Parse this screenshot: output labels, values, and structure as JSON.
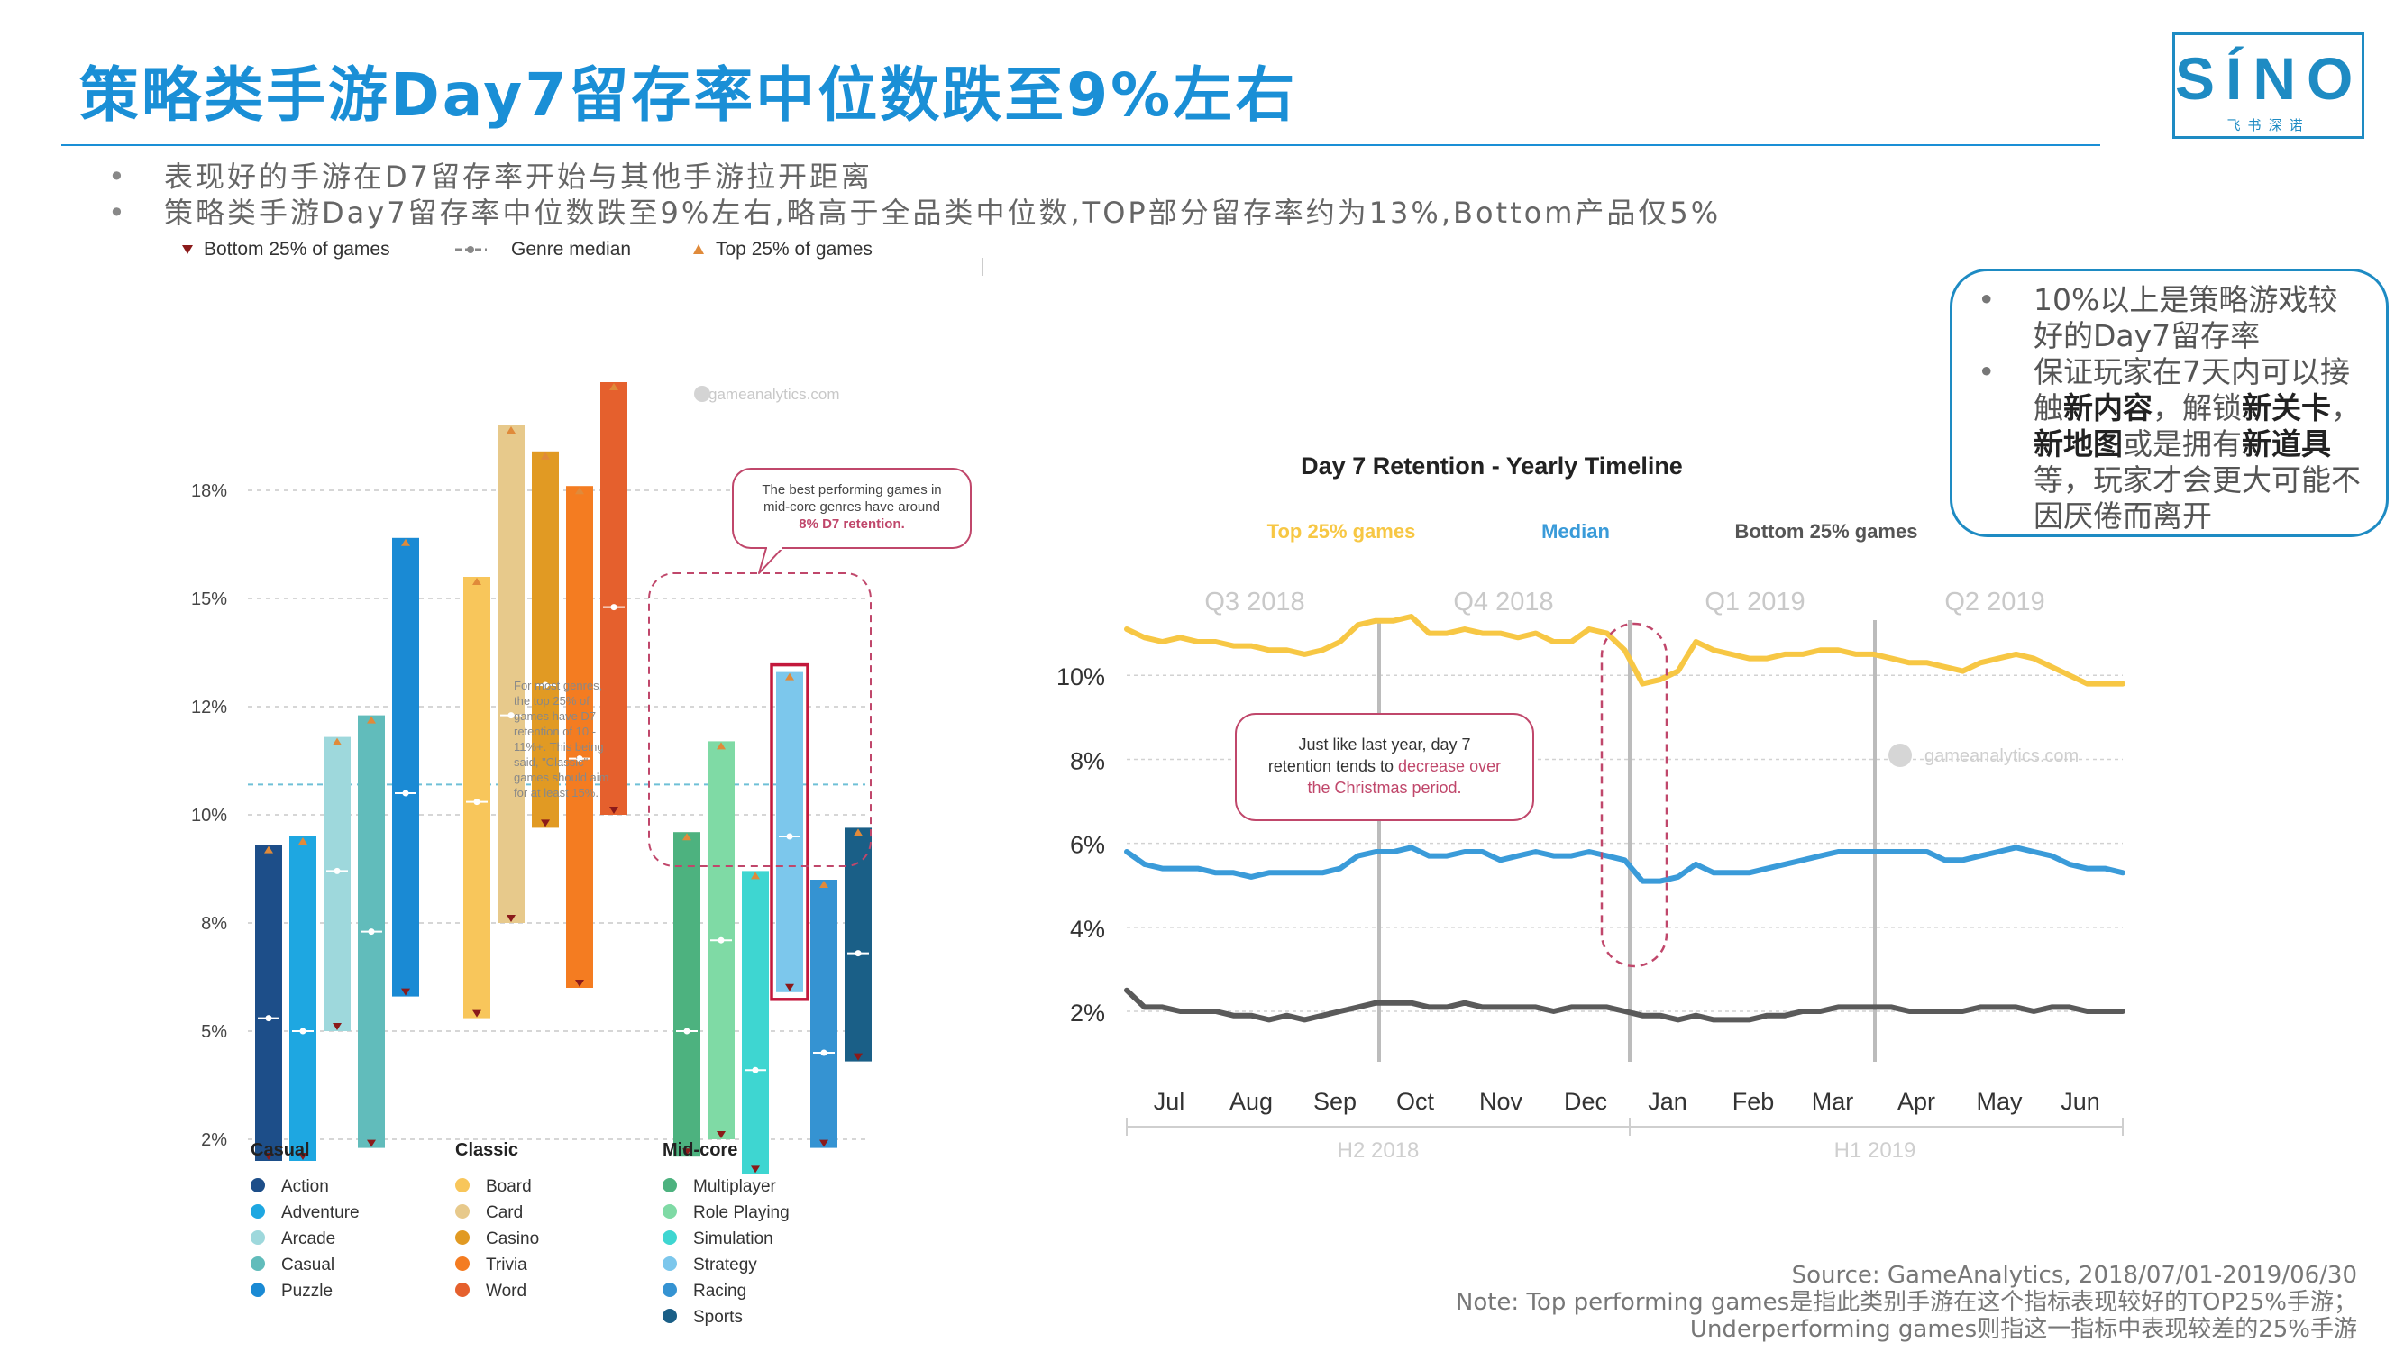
{
  "title": "策略类手游Day7留存率中位数跌至9%左右",
  "logo": {
    "word": "SÍNO",
    "sub": "飞书深诺"
  },
  "bullets": [
    "表现好的手游在D7留存率开始与其他手游拉开距离",
    "策略类手游Day7留存率中位数跌至9%左右,略高于全品类中位数,TOP部分留存率约为13%,Bottom产品仅5%"
  ],
  "callout": {
    "item1": "10%以上是策略游戏较好的Day7留存率",
    "item2_parts": [
      "保证玩家在7天内可以接触",
      "新内容",
      "，解锁",
      "新关卡",
      "，",
      "新地图",
      "或是拥有",
      "新道具",
      "等，玩家才会更大可能不因厌倦而离开"
    ]
  },
  "source": {
    "line1": "Source: GameAnalytics, 2018/07/01-2019/06/30",
    "line2": "Note: Top performing games是指此类别手游在这个指标表现较好的TOP25%手游；",
    "line3": "Underperforming games则指这一指标中表现较差的25%手游"
  },
  "colors": {
    "accent": "#1a8fd6",
    "top": "#f7c744",
    "median": "#3a9bd9",
    "bottom": "#5a5a5a",
    "highlight": "#c3183c",
    "annotation": "#c0476b"
  },
  "chart_data": [
    {
      "type": "bar",
      "subtype": "range",
      "legend": {
        "bottom": "Bottom 25% of games",
        "median": "Genre median",
        "top": "Top 25% of games"
      },
      "watermark": "gameanalytics.com",
      "yticks": [
        "2%",
        "5%",
        "8%",
        "10%",
        "12%",
        "15%",
        "18%"
      ],
      "ylim": [
        0,
        20
      ],
      "groups": [
        {
          "name": "Casual",
          "genres": [
            {
              "name": "Action",
              "color": "#1d4e89",
              "bottom": 1.5,
              "median": 4.8,
              "top": 8.8
            },
            {
              "name": "Adventure",
              "color": "#1ea7e1",
              "bottom": 1.5,
              "median": 4.5,
              "top": 9.0
            },
            {
              "name": "Arcade",
              "color": "#9ed8dc",
              "bottom": 4.5,
              "median": 8.2,
              "top": 11.3
            },
            {
              "name": "Casual",
              "color": "#61bcbb",
              "bottom": 1.8,
              "median": 6.8,
              "top": 11.8
            },
            {
              "name": "Puzzle",
              "color": "#1a8ad4",
              "bottom": 5.3,
              "median": 10.0,
              "top": 15.9
            }
          ]
        },
        {
          "name": "Classic",
          "genres": [
            {
              "name": "Board",
              "color": "#f8c65b",
              "bottom": 4.8,
              "median": 9.8,
              "top": 15.0
            },
            {
              "name": "Card",
              "color": "#e7c98b",
              "bottom": 7.0,
              "median": 11.8,
              "top": 18.5
            },
            {
              "name": "Casino",
              "color": "#e19a23",
              "bottom": 9.2,
              "median": 12.5,
              "top": 17.9
            },
            {
              "name": "Trivia",
              "color": "#f47c21",
              "bottom": 5.5,
              "median": 10.8,
              "top": 17.1
            },
            {
              "name": "Word",
              "color": "#e5602d",
              "bottom": 9.5,
              "median": 14.3,
              "top": 19.5
            }
          ]
        },
        {
          "name": "Mid-core",
          "genres": [
            {
              "name": "Multiplayer",
              "color": "#4db27f",
              "bottom": 1.6,
              "median": 4.5,
              "top": 9.1
            },
            {
              "name": "Role Playing",
              "color": "#7fdaa5",
              "bottom": 2.0,
              "median": 6.6,
              "top": 11.2
            },
            {
              "name": "Simulation",
              "color": "#3ed6d1",
              "bottom": 1.2,
              "median": 3.6,
              "top": 8.2
            },
            {
              "name": "Strategy",
              "color": "#7cc7ec",
              "bottom": 5.4,
              "median": 9.0,
              "top": 12.8
            },
            {
              "name": "Racing",
              "color": "#3593d2",
              "bottom": 1.8,
              "median": 4.0,
              "top": 8.0
            },
            {
              "name": "Sports",
              "color": "#1a5f87",
              "bottom": 3.8,
              "median": 6.3,
              "top": 9.2
            }
          ]
        }
      ],
      "reference_line": 10.2,
      "annotations": {
        "bubble": [
          "The best performing games in",
          "mid-core genres have around"
        ],
        "bubble_highlight": "8% D7 retention.",
        "side_note": [
          "For most genres,",
          "the top 25% of",
          "games have D7",
          "retention of 10 -",
          "11%+. This being",
          "said, \"Classic\"",
          "games should aim",
          "for at least 15%."
        ]
      }
    },
    {
      "type": "line",
      "title": "Day 7 Retention - Yearly Timeline",
      "series_labels": {
        "top": "Top 25% games",
        "median": "Median",
        "bottom": "Bottom 25% games"
      },
      "quarters": [
        "Q3 2018",
        "Q4 2018",
        "Q1 2019",
        "Q2 2019"
      ],
      "months": [
        "Jul",
        "Aug",
        "Sep",
        "Oct",
        "Nov",
        "Dec",
        "Jan",
        "Feb",
        "Mar",
        "Apr",
        "May",
        "Jun"
      ],
      "halves": [
        "H2 2018",
        "H1 2019"
      ],
      "yticks": [
        "2%",
        "4%",
        "6%",
        "8%",
        "10%"
      ],
      "ylim": [
        1.4,
        11.4
      ],
      "watermark": "gameanalytics.com",
      "annotation": {
        "plain": [
          "Just like last year, day 7",
          "retention tends to "
        ],
        "highlight": "decrease over",
        "highlight2": "the Christmas period."
      },
      "series": [
        {
          "name": "Top 25% games",
          "values": [
            11.1,
            10.9,
            10.8,
            10.9,
            10.8,
            10.8,
            10.7,
            10.7,
            10.6,
            10.6,
            10.5,
            10.6,
            10.8,
            11.2,
            11.3,
            11.3,
            11.4,
            11.0,
            11.0,
            11.1,
            11.0,
            11.0,
            10.9,
            11.0,
            10.8,
            10.8,
            11.1,
            11.0,
            10.6,
            9.8,
            9.9,
            10.1,
            10.8,
            10.6,
            10.5,
            10.4,
            10.4,
            10.5,
            10.5,
            10.6,
            10.6,
            10.5,
            10.5,
            10.4,
            10.3,
            10.3,
            10.2,
            10.1,
            10.3,
            10.4,
            10.5,
            10.4,
            10.2,
            10.0,
            9.8,
            9.8,
            9.8
          ]
        },
        {
          "name": "Median",
          "values": [
            5.8,
            5.5,
            5.4,
            5.4,
            5.4,
            5.3,
            5.3,
            5.2,
            5.3,
            5.3,
            5.3,
            5.3,
            5.4,
            5.7,
            5.8,
            5.8,
            5.9,
            5.7,
            5.7,
            5.8,
            5.8,
            5.6,
            5.7,
            5.8,
            5.7,
            5.7,
            5.8,
            5.7,
            5.6,
            5.1,
            5.1,
            5.2,
            5.5,
            5.3,
            5.3,
            5.3,
            5.4,
            5.5,
            5.6,
            5.7,
            5.8,
            5.8,
            5.8,
            5.8,
            5.8,
            5.8,
            5.6,
            5.6,
            5.7,
            5.8,
            5.9,
            5.8,
            5.7,
            5.5,
            5.4,
            5.4,
            5.3
          ]
        },
        {
          "name": "Bottom 25% games",
          "values": [
            2.5,
            2.1,
            2.1,
            2.0,
            2.0,
            2.0,
            1.9,
            1.9,
            1.8,
            1.9,
            1.8,
            1.9,
            2.0,
            2.1,
            2.2,
            2.2,
            2.2,
            2.1,
            2.1,
            2.2,
            2.1,
            2.1,
            2.1,
            2.1,
            2.0,
            2.1,
            2.1,
            2.1,
            2.0,
            1.9,
            1.9,
            1.8,
            1.9,
            1.8,
            1.8,
            1.8,
            1.9,
            1.9,
            2.0,
            2.0,
            2.1,
            2.1,
            2.1,
            2.1,
            2.0,
            2.0,
            2.0,
            2.0,
            2.1,
            2.1,
            2.1,
            2.0,
            2.1,
            2.1,
            2.0,
            2.0,
            2.0
          ]
        }
      ]
    }
  ]
}
